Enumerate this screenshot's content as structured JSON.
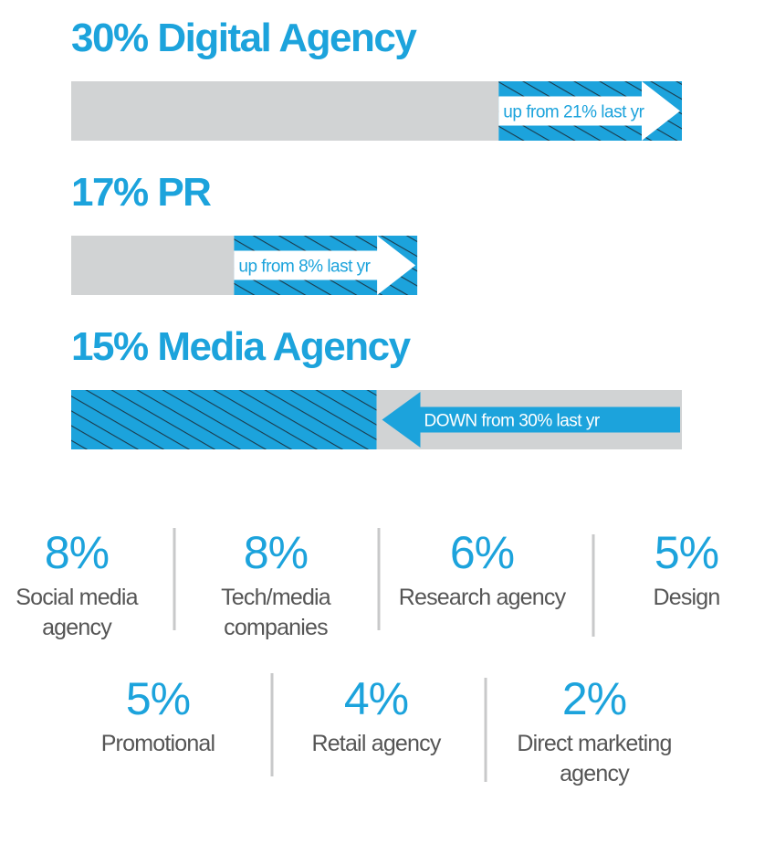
{
  "chart_data": [
    {
      "type": "bar",
      "categories": [
        "Digital Agency",
        "PR",
        "Media Agency"
      ],
      "values": [
        30,
        17,
        15
      ],
      "value_labels": [
        "30%",
        "17%",
        "15%"
      ],
      "previous": [
        21,
        8,
        30
      ],
      "notes": [
        "up from 21% last yr",
        "up from 8% last yr",
        "DOWN from 30% last yr"
      ],
      "xlim": [
        0,
        30
      ],
      "color": "#1ca3dc",
      "base_color": "#d1d3d4",
      "hatch_color": "#1b3a4b"
    },
    {
      "type": "stat",
      "categories": [
        [
          "Social media",
          "agency"
        ],
        [
          "Tech/media",
          "companies"
        ],
        [
          "Research agency"
        ],
        [
          "Design"
        ],
        [
          "Promotional"
        ],
        [
          "Retail agency"
        ],
        [
          "Direct marketing",
          "agency"
        ]
      ],
      "values": [
        8,
        8,
        6,
        5,
        5,
        4,
        2
      ],
      "value_labels": [
        "8%",
        "8%",
        "6%",
        "5%",
        "5%",
        "4%",
        "2%"
      ],
      "color": "#1ca3dc"
    }
  ]
}
